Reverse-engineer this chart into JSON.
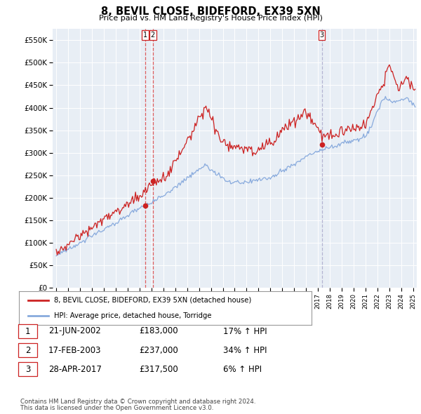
{
  "title": "8, BEVIL CLOSE, BIDEFORD, EX39 5XN",
  "subtitle": "Price paid vs. HM Land Registry's House Price Index (HPI)",
  "ylabel_ticks": [
    "£0",
    "£50K",
    "£100K",
    "£150K",
    "£200K",
    "£250K",
    "£300K",
    "£350K",
    "£400K",
    "£450K",
    "£500K",
    "£550K"
  ],
  "ytick_values": [
    0,
    50000,
    100000,
    150000,
    200000,
    250000,
    300000,
    350000,
    400000,
    450000,
    500000,
    550000
  ],
  "ylim": [
    0,
    575000
  ],
  "sale_dates_num": [
    2002.47,
    2003.12,
    2017.32
  ],
  "sale_prices": [
    183000,
    237000,
    317500
  ],
  "sale_labels": [
    "1",
    "2",
    "3"
  ],
  "sale_vline_colors": [
    "#dd4444",
    "#dd4444",
    "#aaaacc"
  ],
  "legend_property": "8, BEVIL CLOSE, BIDEFORD, EX39 5XN (detached house)",
  "legend_hpi": "HPI: Average price, detached house, Torridge",
  "table_rows": [
    [
      "1",
      "21-JUN-2002",
      "£183,000",
      "17% ↑ HPI"
    ],
    [
      "2",
      "17-FEB-2003",
      "£237,000",
      "34% ↑ HPI"
    ],
    [
      "3",
      "28-APR-2017",
      "£317,500",
      "6% ↑ HPI"
    ]
  ],
  "footnote1": "Contains HM Land Registry data © Crown copyright and database right 2024.",
  "footnote2": "This data is licensed under the Open Government Licence v3.0.",
  "property_line_color": "#cc2222",
  "hpi_line_color": "#88aadd",
  "dot_color": "#cc2222",
  "plot_bg_color": "#e8eef5",
  "background_color": "#ffffff",
  "grid_color": "#ffffff"
}
